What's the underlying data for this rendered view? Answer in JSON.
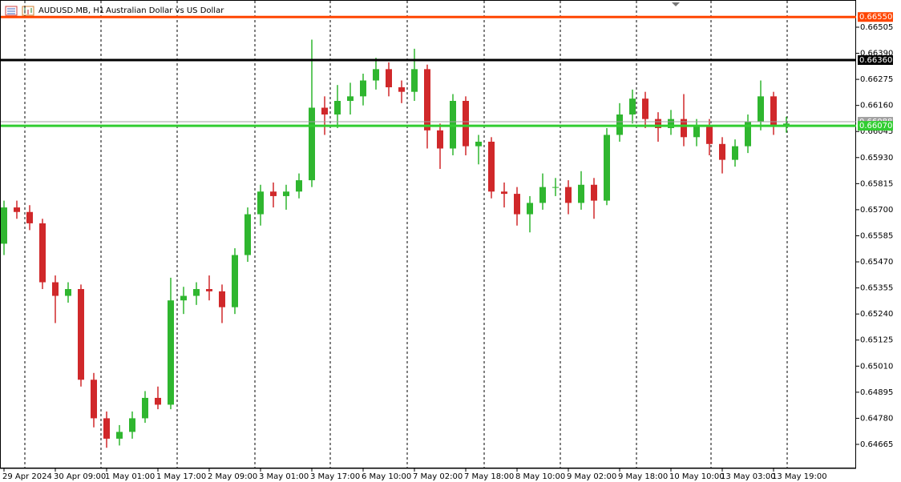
{
  "chart_data": {
    "type": "candlestick",
    "symbol": "AUDUSD.MB, H1",
    "title": "Australian Dollar vs US Dollar",
    "categories": [
      "29 Apr 2024",
      null,
      null,
      null,
      "30 Apr 09:00",
      null,
      null,
      null,
      "1 May 01:00",
      null,
      null,
      null,
      "1 May 17:00",
      null,
      null,
      null,
      "2 May 09:00",
      null,
      null,
      null,
      "3 May 01:00",
      null,
      null,
      null,
      "3 May 17:00",
      null,
      null,
      null,
      "6 May 10:00",
      null,
      null,
      null,
      "7 May 02:00",
      null,
      null,
      null,
      "7 May 18:00",
      null,
      null,
      null,
      "8 May 10:00",
      null,
      null,
      null,
      "9 May 02:00",
      null,
      null,
      null,
      "9 May 18:00",
      null,
      null,
      null,
      "10 May 10:00",
      null,
      null,
      null,
      "13 May 03:00",
      null,
      null,
      null,
      "13 May 19:00",
      null
    ],
    "open": [
      0.6555,
      0.6571,
      0.6569,
      0.6564,
      0.6538,
      0.6532,
      0.6535,
      0.6495,
      0.6478,
      0.6469,
      0.6472,
      0.6478,
      0.6487,
      0.6484,
      0.653,
      0.6532,
      0.6535,
      0.6534,
      0.6527,
      0.655,
      0.6568,
      0.6578,
      0.6576,
      0.6578,
      0.6583,
      0.6615,
      0.6612,
      0.6618,
      0.662,
      0.6627,
      0.6632,
      0.6624,
      0.6622,
      0.6632,
      0.6605,
      0.6597,
      0.6618,
      0.6598,
      0.66,
      0.6578,
      0.6577,
      0.6568,
      0.6573,
      0.658,
      0.658,
      0.6573,
      0.6581,
      0.6574,
      0.6603,
      0.6612,
      0.6619,
      0.661,
      0.6606,
      0.661,
      0.6602,
      0.6607,
      0.6599,
      0.6592,
      0.6598,
      0.6609,
      0.662,
      0.6607
    ],
    "high": [
      0.6574,
      0.6574,
      0.6572,
      0.6566,
      0.6541,
      0.6538,
      0.6537,
      0.6498,
      0.6481,
      0.6475,
      0.6481,
      0.649,
      0.6492,
      0.654,
      0.6536,
      0.6538,
      0.6541,
      0.6537,
      0.6553,
      0.6571,
      0.6581,
      0.6582,
      0.6581,
      0.6586,
      0.6645,
      0.662,
      0.6625,
      0.6626,
      0.663,
      0.6637,
      0.6635,
      0.6627,
      0.6641,
      0.6634,
      0.6608,
      0.6621,
      0.662,
      0.6603,
      0.6602,
      0.6582,
      0.658,
      0.6576,
      0.6586,
      0.6584,
      0.6583,
      0.6587,
      0.6584,
      0.6606,
      0.6617,
      0.6623,
      0.6622,
      0.6613,
      0.6614,
      0.6621,
      0.661,
      0.661,
      0.6602,
      0.6601,
      0.6612,
      0.6627,
      0.6622,
      0.6611
    ],
    "low": [
      0.655,
      0.6566,
      0.6561,
      0.6535,
      0.652,
      0.6529,
      0.6492,
      0.6474,
      0.6465,
      0.6466,
      0.6469,
      0.6476,
      0.6482,
      0.6482,
      0.6524,
      0.6528,
      0.653,
      0.652,
      0.6524,
      0.6547,
      0.6563,
      0.6571,
      0.657,
      0.6575,
      0.658,
      0.6603,
      0.6606,
      0.6612,
      0.6616,
      0.6623,
      0.662,
      0.6617,
      0.6618,
      0.6597,
      0.6588,
      0.6594,
      0.6594,
      0.659,
      0.6575,
      0.6571,
      0.6563,
      0.656,
      0.657,
      0.6576,
      0.6568,
      0.657,
      0.6566,
      0.6572,
      0.66,
      0.6608,
      0.6606,
      0.66,
      0.6603,
      0.6598,
      0.6598,
      0.6594,
      0.6586,
      0.6589,
      0.6595,
      0.6605,
      0.6603,
      0.6604
    ],
    "close": [
      0.6571,
      0.6569,
      0.6564,
      0.6538,
      0.6532,
      0.6535,
      0.6495,
      0.6478,
      0.6469,
      0.6472,
      0.6478,
      0.6487,
      0.6484,
      0.653,
      0.6532,
      0.6535,
      0.6534,
      0.6527,
      0.655,
      0.6568,
      0.6578,
      0.6576,
      0.6578,
      0.6583,
      0.6615,
      0.6612,
      0.6618,
      0.662,
      0.6627,
      0.6632,
      0.6624,
      0.6622,
      0.6632,
      0.6605,
      0.6597,
      0.6618,
      0.6598,
      0.66,
      0.6578,
      0.6577,
      0.6568,
      0.6573,
      0.658,
      0.658,
      0.6573,
      0.6581,
      0.6574,
      0.6603,
      0.6612,
      0.6619,
      0.661,
      0.6606,
      0.661,
      0.6602,
      0.6607,
      0.6599,
      0.6592,
      0.6598,
      0.6609,
      0.662,
      0.6607,
      0.6608
    ],
    "up_color": "#2fb62f",
    "down_color": "#d0282a",
    "ylim": [
      0.64559,
      0.66625
    ],
    "yticks": [
      0.66505,
      {
        "value": 0.6639,
        "label": "0.66390"
      },
      0.66275,
      {
        "value": 0.6616,
        "label": "0.66160"
      },
      0.66045,
      {
        "value": 0.6593,
        "label": "0.65930"
      },
      0.65815,
      {
        "value": 0.657,
        "label": "0.65700"
      },
      0.65585,
      {
        "value": 0.6547,
        "label": "0.65470"
      },
      0.65355,
      {
        "value": 0.6524,
        "label": "0.65240"
      },
      0.65125,
      {
        "value": 0.6501,
        "label": "0.65010"
      },
      0.64895,
      {
        "value": 0.6478,
        "label": "0.64780"
      },
      0.64665
    ],
    "levels": [
      {
        "value": 0.66088,
        "label": "0.66088",
        "color": "#a0a0a0"
      },
      {
        "value": 0.6655,
        "label": "0.66550",
        "color": "#ff4500"
      },
      {
        "value": 0.6636,
        "label": "0.66360",
        "color": "#000000"
      },
      {
        "value": 0.6607,
        "label": "0.66070",
        "color": "#32cd32"
      }
    ]
  }
}
